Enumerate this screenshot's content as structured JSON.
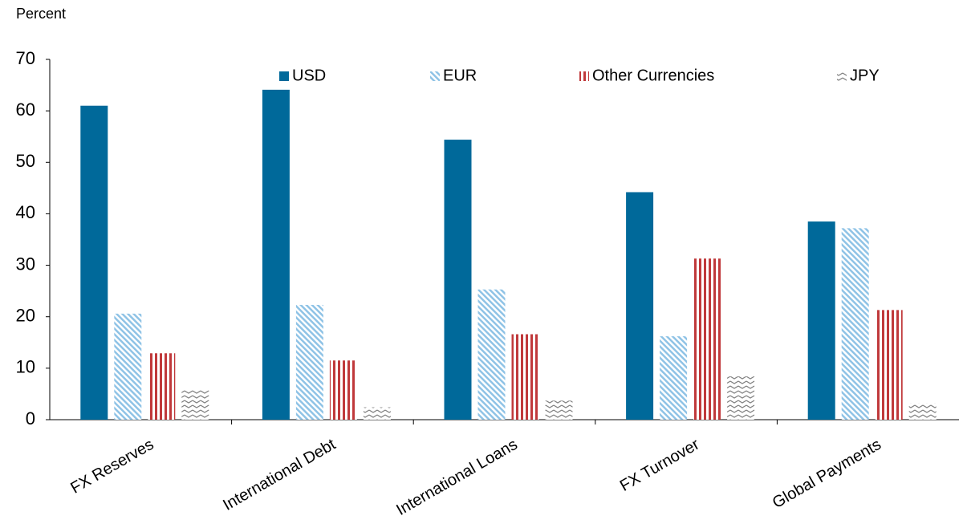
{
  "chart_data": {
    "type": "bar",
    "y_label": "Percent",
    "categories": [
      "FX Reserves",
      "International Debt",
      "International Loans",
      "FX Turnover",
      "Global Payments"
    ],
    "series": [
      {
        "name": "USD",
        "color": "#00699a",
        "pattern": "solid",
        "values": [
          61,
          64.1,
          54.4,
          44.2,
          38.5
        ]
      },
      {
        "name": "EUR",
        "color": "#8fc3e6",
        "pattern": "diagonal",
        "values": [
          20.6,
          22.3,
          25.3,
          16.2,
          37.2
        ]
      },
      {
        "name": "Other Currencies",
        "color": "#c0393b",
        "pattern": "vertical",
        "values": [
          12.9,
          11.5,
          16.6,
          31.3,
          21.3
        ]
      },
      {
        "name": "JPY",
        "color": "#808080",
        "pattern": "wave",
        "values": [
          5.8,
          2.4,
          3.7,
          8.4,
          3.2
        ]
      }
    ],
    "ylim": [
      0,
      70
    ],
    "yticks": [
      0,
      10,
      20,
      30,
      40,
      50,
      60,
      70
    ],
    "grid": false,
    "legend": "top"
  }
}
